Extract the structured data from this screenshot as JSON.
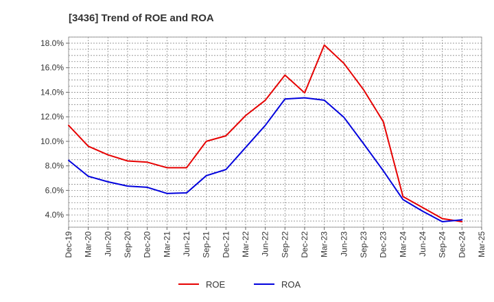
{
  "chart_data": {
    "type": "line",
    "title": "[3436]  Trend of ROE and ROA",
    "xlabel": "",
    "ylabel": "",
    "x_ticks": [
      "Dec-19",
      "Mar-20",
      "Jun-20",
      "Sep-20",
      "Dec-20",
      "Mar-21",
      "Jun-21",
      "Sep-21",
      "Dec-21",
      "Mar-22",
      "Jun-22",
      "Sep-22",
      "Dec-22",
      "Mar-23",
      "Jun-23",
      "Sep-23",
      "Dec-23",
      "Mar-24",
      "Jun-24",
      "Sep-24",
      "Dec-24",
      "Mar-25"
    ],
    "y_ticks": [
      "4.0%",
      "6.0%",
      "8.0%",
      "10.0%",
      "12.0%",
      "14.0%",
      "16.0%",
      "18.0%"
    ],
    "ylim": [
      3.0,
      18.5
    ],
    "grid": true,
    "legend_position": "bottom",
    "categories": [
      "Dec-19",
      "Mar-20",
      "Jun-20",
      "Sep-20",
      "Dec-20",
      "Mar-21",
      "Jun-21",
      "Sep-21",
      "Dec-21",
      "Mar-22",
      "Jun-22",
      "Sep-22",
      "Dec-22",
      "Mar-23",
      "Jun-23",
      "Sep-23",
      "Dec-23",
      "Mar-24",
      "Jun-24",
      "Sep-24",
      "Dec-24"
    ],
    "series": [
      {
        "name": "ROE",
        "color": "#e60000",
        "values": [
          11.3,
          9.6,
          8.9,
          8.4,
          8.3,
          7.85,
          7.85,
          10.0,
          10.45,
          12.1,
          13.35,
          15.4,
          13.95,
          17.85,
          16.35,
          14.2,
          11.6,
          5.5,
          4.6,
          3.7,
          3.45
        ]
      },
      {
        "name": "ROA",
        "color": "#0000dd",
        "values": [
          8.45,
          7.15,
          6.7,
          6.35,
          6.25,
          5.75,
          5.8,
          7.2,
          7.7,
          9.5,
          11.3,
          13.45,
          13.55,
          13.35,
          11.95,
          9.8,
          7.6,
          5.25,
          4.3,
          3.45,
          3.6
        ]
      }
    ]
  }
}
